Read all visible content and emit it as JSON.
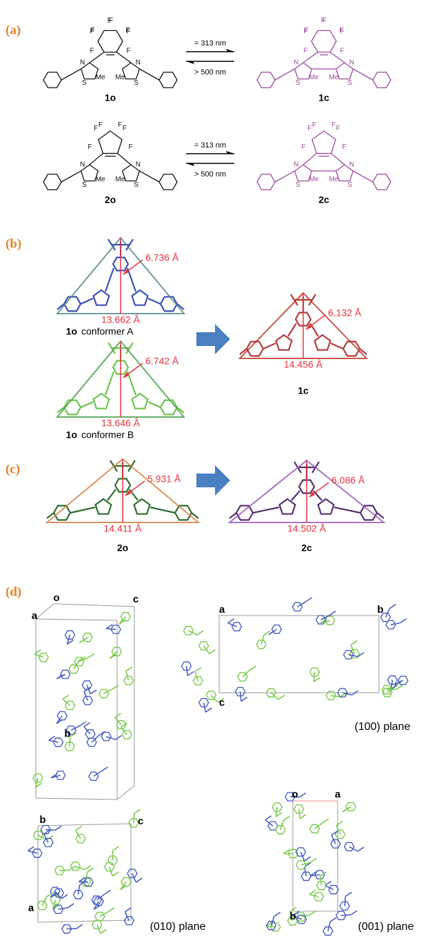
{
  "panel_a": {
    "label": "(a)",
    "reactions": [
      {
        "forward": "= 313 nm",
        "backward": "> 500 nm",
        "reactant": {
          "name": "1o",
          "atoms": [
            "F",
            "F",
            "F",
            "F",
            "F",
            "F",
            "F",
            "F",
            "N",
            "N",
            "S",
            "S",
            "Me",
            "Me"
          ]
        },
        "product": {
          "name": "1c",
          "atoms": [
            "F",
            "F",
            "F",
            "F",
            "F",
            "F",
            "F",
            "F",
            "N",
            "N",
            "S",
            "S",
            "Me",
            "Me"
          ]
        }
      },
      {
        "forward": "= 313 nm",
        "backward": "> 500 nm",
        "reactant": {
          "name": "2o",
          "atoms": [
            "F",
            "F",
            "F",
            "F",
            "F",
            "F",
            "N",
            "N",
            "S",
            "S",
            "Me",
            "Me"
          ]
        },
        "product": {
          "name": "2c",
          "atoms": [
            "F",
            "F",
            "F",
            "F",
            "F",
            "F",
            "N",
            "N",
            "S",
            "S",
            "Me",
            "Me"
          ]
        }
      }
    ]
  },
  "panel_b": {
    "label": "(b)",
    "reactant": [
      {
        "name": "1o",
        "conformer": "conformer A",
        "height": "6.736 Å",
        "base": "13.662 Å"
      },
      {
        "name": "1o",
        "conformer": "conformer B",
        "height": "6.742 Å",
        "base": "13.646 Å"
      }
    ],
    "product": {
      "name": "1c",
      "height": "6.132 Å",
      "base": "14.456 Å"
    }
  },
  "panel_c": {
    "label": "(c)",
    "reactant": {
      "name": "2o",
      "height": "5.931 Å",
      "base": "14.411 Å"
    },
    "product": {
      "name": "2c",
      "height": "6.086 Å",
      "base": "14.502 Å"
    }
  },
  "panel_d": {
    "label": "(d)",
    "views": [
      {
        "axes": [
          "o",
          "a",
          "c",
          "b"
        ]
      },
      {
        "axes": [
          "a",
          "b",
          "c"
        ],
        "plane": "(100) plane"
      },
      {
        "axes": [
          "b",
          "c",
          "a"
        ],
        "plane": "(010) plane"
      },
      {
        "axes": [
          "o",
          "a",
          "b"
        ],
        "plane": "(001) plane"
      }
    ]
  }
}
